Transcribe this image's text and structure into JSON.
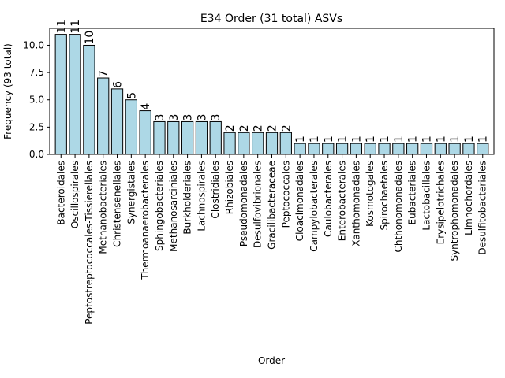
{
  "chart_data": {
    "type": "bar",
    "title": "E34 Order (31 total) ASVs",
    "xlabel": "Order",
    "ylabel": "Frequency (93 total)",
    "ylim": [
      0,
      11.55
    ],
    "yticks": [
      "0.0",
      "2.5",
      "5.0",
      "7.5",
      "10.0"
    ],
    "ytick_values": [
      0,
      2.5,
      5,
      7.5,
      10
    ],
    "bar_color": "#add8e6",
    "edge_color": "#000000",
    "categories": [
      "Bacteroidales",
      "Oscillospirales",
      "Peptostreptococcales-Tissierellales",
      "Methanobacteriales",
      "Christensenellales",
      "Synergistales",
      "Thermoanaerobacterales",
      "Sphingobacteriales",
      "Methanosarciniales",
      "Burkholderiales",
      "Lachnospirales",
      "Clostridiales",
      "Rhizobiales",
      "Pseudomonadales",
      "Desulfovibrionales",
      "Gracilibacteraceae",
      "Peptococcales",
      "Cloacimonadales",
      "Campylobacterales",
      "Caulobacterales",
      "Enterobacterales",
      "Xanthomonadales",
      "Kosmotogales",
      "Spirochaetales",
      "Chthonomonadales",
      "Eubacteriales",
      "Lactobacillales",
      "Erysipelotrichales",
      "Syntrophomonadales",
      "Limnochordales",
      "Desulfitobacteriales"
    ],
    "values": [
      11,
      11,
      10,
      7,
      6,
      5,
      4,
      3,
      3,
      3,
      3,
      3,
      2,
      2,
      2,
      2,
      2,
      1,
      1,
      1,
      1,
      1,
      1,
      1,
      1,
      1,
      1,
      1,
      1,
      1,
      1
    ]
  }
}
